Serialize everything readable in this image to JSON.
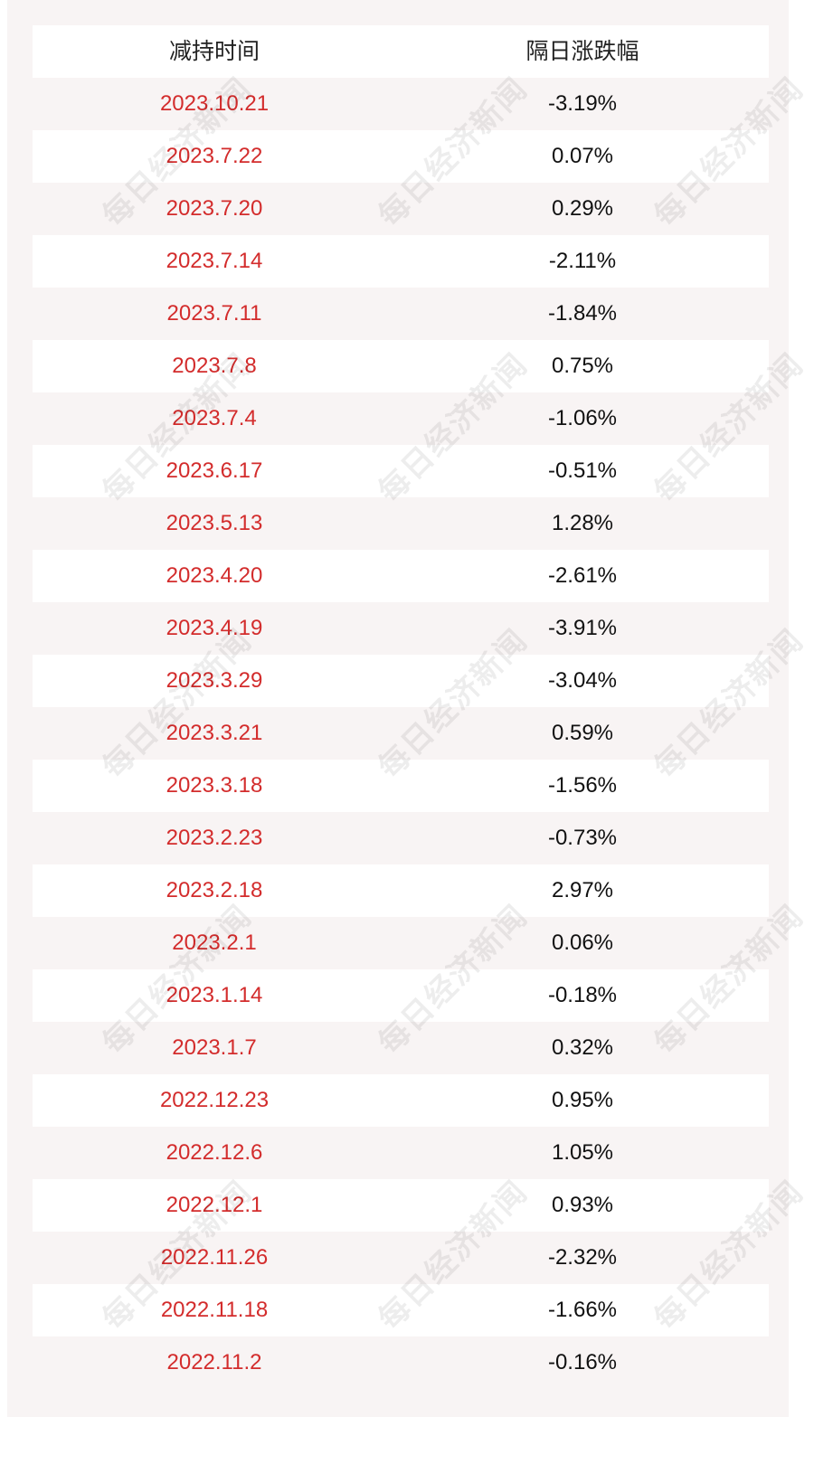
{
  "table": {
    "headers": {
      "date": "减持时间",
      "change": "隔日涨跌幅"
    },
    "rows": [
      {
        "date": "2023.10.21",
        "change": "-3.19%"
      },
      {
        "date": "2023.7.22",
        "change": "0.07%"
      },
      {
        "date": "2023.7.20",
        "change": "0.29%"
      },
      {
        "date": "2023.7.14",
        "change": "-2.11%"
      },
      {
        "date": "2023.7.11",
        "change": "-1.84%"
      },
      {
        "date": "2023.7.8",
        "change": "0.75%"
      },
      {
        "date": "2023.7.4",
        "change": "-1.06%"
      },
      {
        "date": "2023.6.17",
        "change": "-0.51%"
      },
      {
        "date": "2023.5.13",
        "change": "1.28%"
      },
      {
        "date": "2023.4.20",
        "change": "-2.61%"
      },
      {
        "date": "2023.4.19",
        "change": "-3.91%"
      },
      {
        "date": "2023.3.29",
        "change": "-3.04%"
      },
      {
        "date": "2023.3.21",
        "change": "0.59%"
      },
      {
        "date": "2023.3.18",
        "change": "-1.56%"
      },
      {
        "date": "2023.2.23",
        "change": "-0.73%"
      },
      {
        "date": "2023.2.18",
        "change": "2.97%"
      },
      {
        "date": "2023.2.1",
        "change": "0.06%"
      },
      {
        "date": "2023.1.14",
        "change": "-0.18%"
      },
      {
        "date": "2023.1.7",
        "change": "0.32%"
      },
      {
        "date": "2022.12.23",
        "change": "0.95%"
      },
      {
        "date": "2022.12.6",
        "change": "1.05%"
      },
      {
        "date": "2022.12.1",
        "change": "0.93%"
      },
      {
        "date": "2022.11.26",
        "change": "-2.32%"
      },
      {
        "date": "2022.11.18",
        "change": "-1.66%"
      },
      {
        "date": "2022.11.2",
        "change": "-0.16%"
      }
    ]
  },
  "watermark": {
    "text": "每日经济新闻"
  },
  "colors": {
    "date": "#d32c2c",
    "panel": "#f8f4f4",
    "stripe": "#ffffff"
  }
}
